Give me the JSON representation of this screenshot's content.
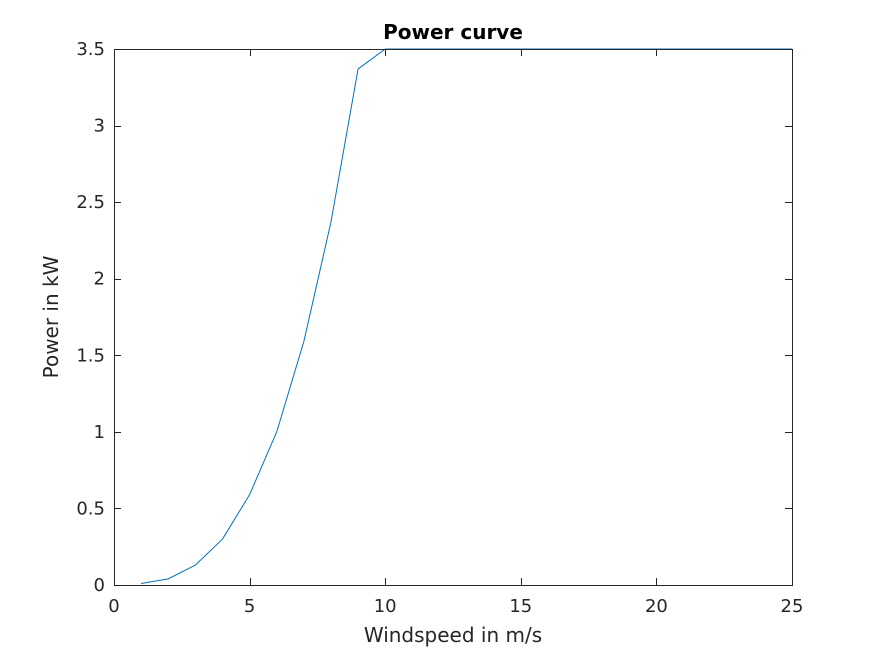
{
  "chart_data": {
    "type": "line",
    "title": "Power curve",
    "xlabel": "Windspeed in m/s",
    "ylabel": "Power in kW",
    "xlim": [
      0,
      25
    ],
    "ylim": [
      0,
      3.5
    ],
    "xticks": [
      0,
      5,
      10,
      15,
      20,
      25
    ],
    "xtick_labels": [
      "0",
      "5",
      "10",
      "15",
      "20",
      "25"
    ],
    "yticks": [
      0,
      0.5,
      1,
      1.5,
      2,
      2.5,
      3,
      3.5
    ],
    "ytick_labels": [
      "0",
      "0.5",
      "1",
      "1.5",
      "2",
      "2.5",
      "3",
      "3.5"
    ],
    "grid": false,
    "series": [
      {
        "color": "#0072bd",
        "x": [
          1,
          2,
          3,
          4,
          5,
          6,
          7,
          8,
          9,
          10,
          11,
          12,
          13,
          14,
          15,
          16,
          17,
          18,
          19,
          20,
          21,
          22,
          23,
          24,
          25
        ],
        "y": [
          0.01,
          0.04,
          0.13,
          0.3,
          0.59,
          1.0,
          1.59,
          2.37,
          3.37,
          3.5,
          3.5,
          3.5,
          3.5,
          3.5,
          3.5,
          3.5,
          3.5,
          3.5,
          3.5,
          3.5,
          3.5,
          3.5,
          3.5,
          3.5,
          3.5
        ]
      }
    ]
  }
}
